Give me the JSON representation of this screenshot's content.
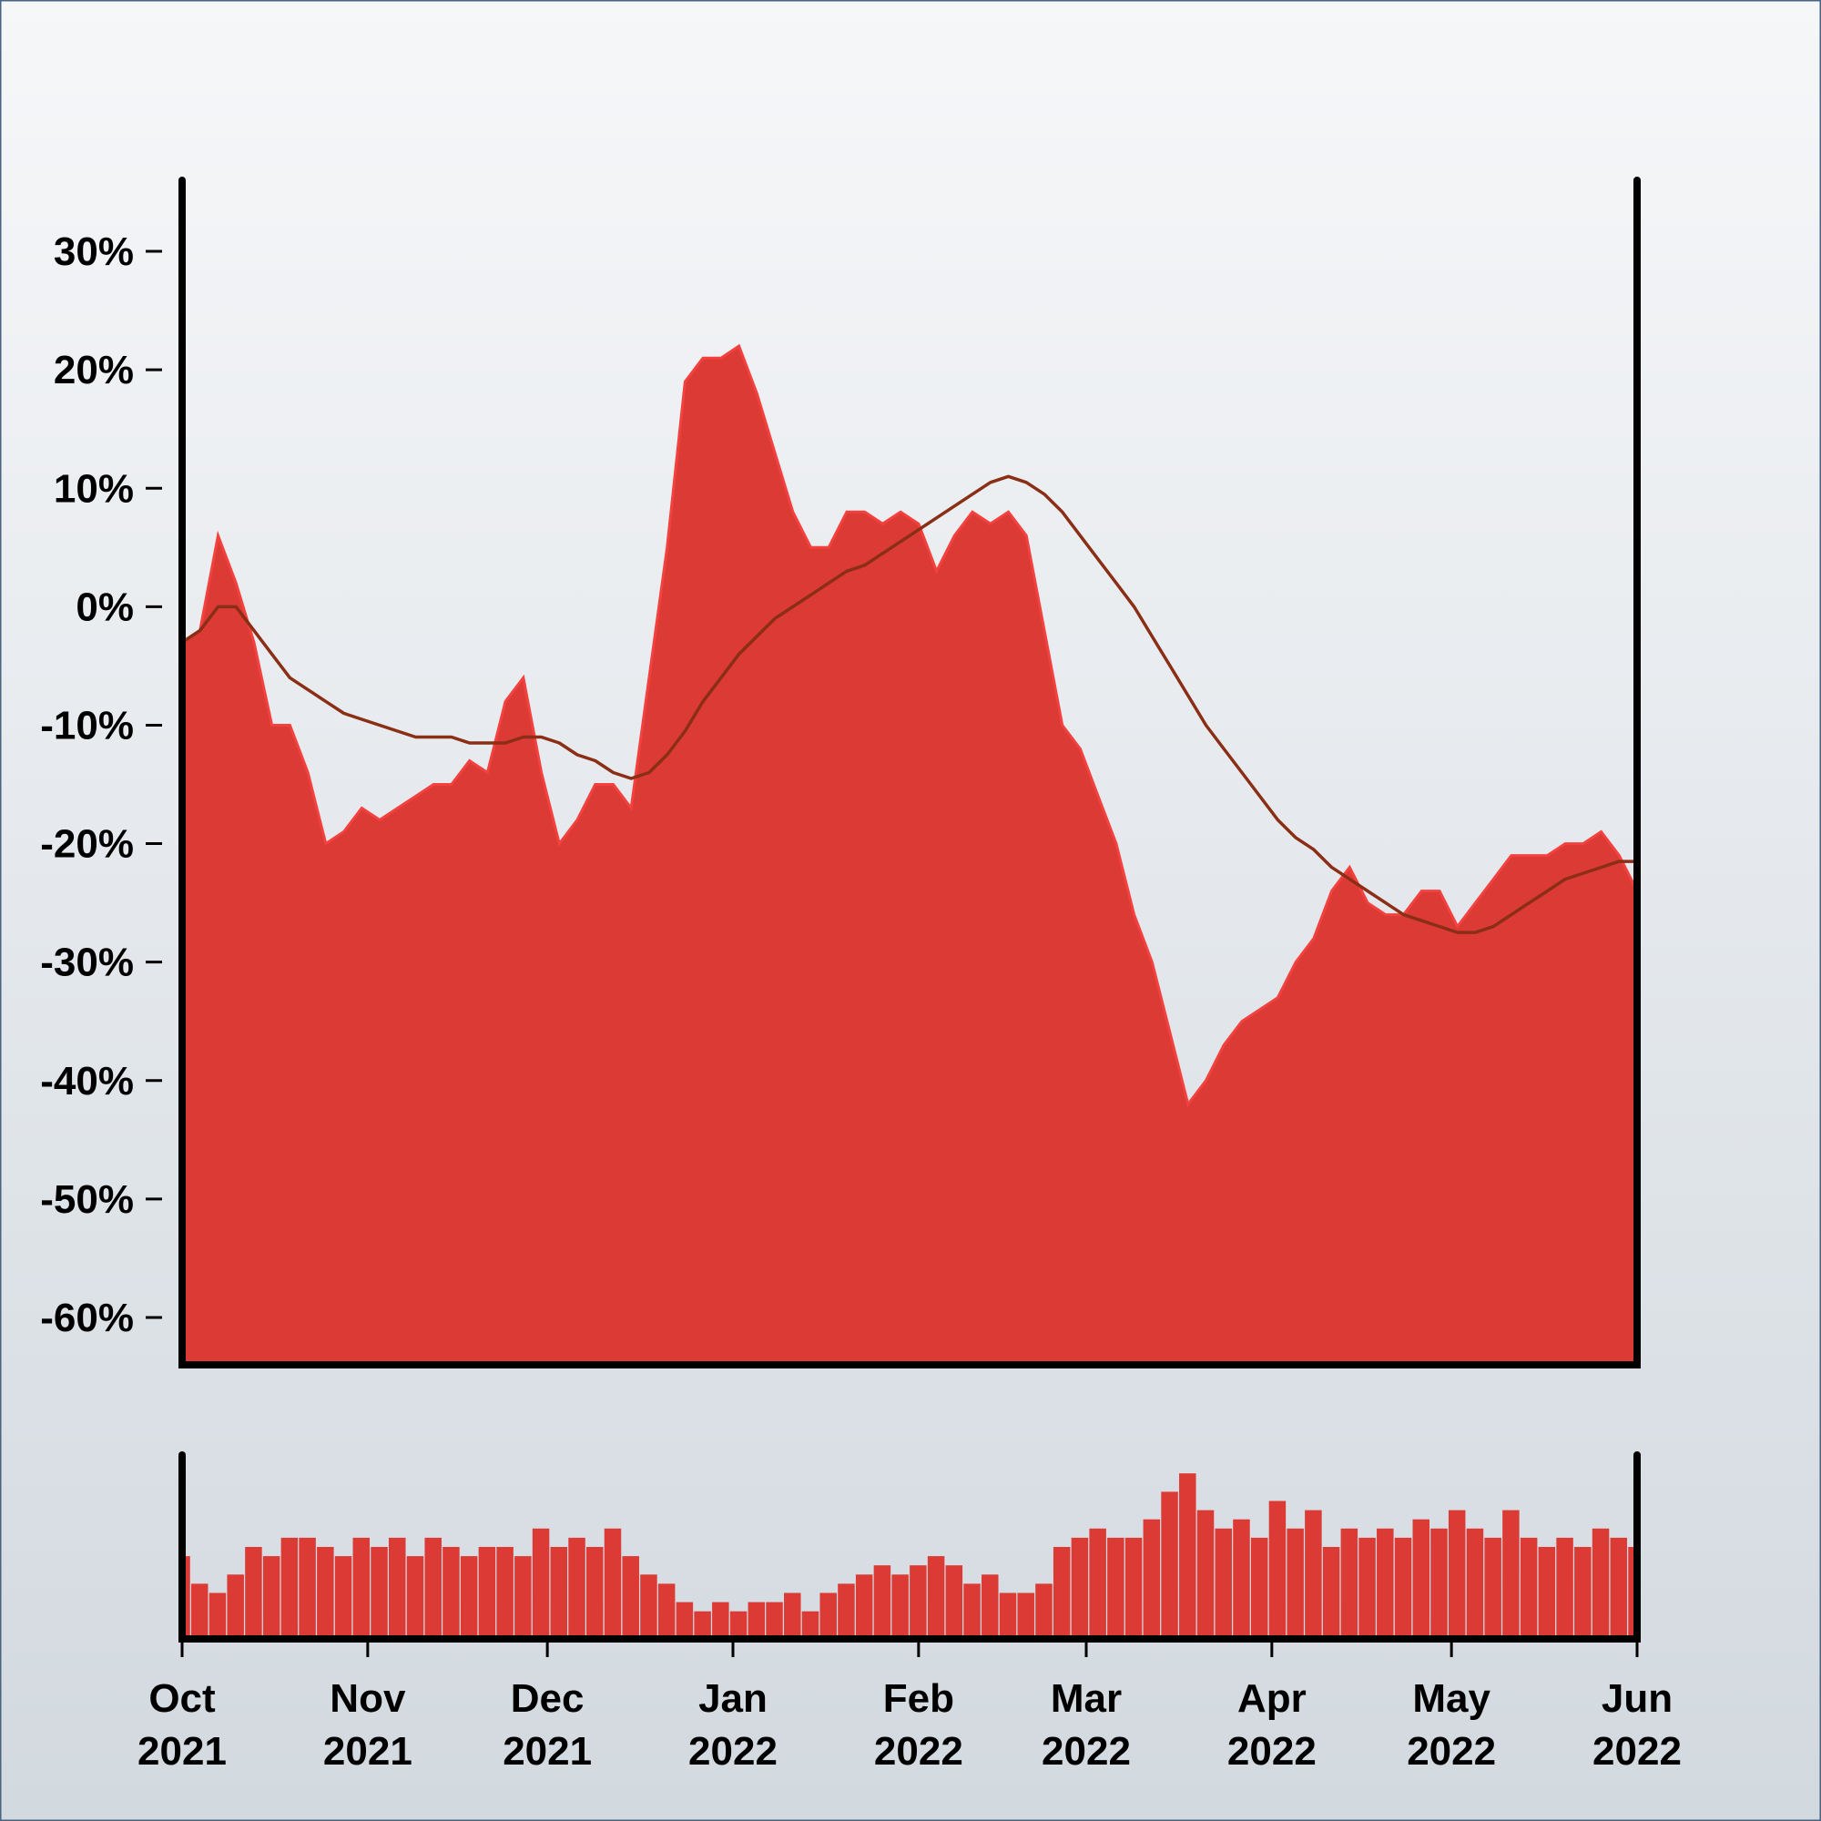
{
  "chart_data": [
    {
      "type": "area",
      "xlim": [
        0,
        243
      ],
      "ylim": [
        -64,
        36
      ],
      "yticks": [
        {
          "value": 30,
          "label": "30%"
        },
        {
          "value": 20,
          "label": "20%"
        },
        {
          "value": 10,
          "label": "10%"
        },
        {
          "value": 0,
          "label": "0%"
        },
        {
          "value": -10,
          "label": "-10%"
        },
        {
          "value": -20,
          "label": "-20%"
        },
        {
          "value": -30,
          "label": "-30%"
        },
        {
          "value": -40,
          "label": "-40%"
        },
        {
          "value": -50,
          "label": "-50%"
        },
        {
          "value": -60,
          "label": "-60%"
        }
      ],
      "x": [
        0,
        3,
        6,
        9,
        12,
        15,
        18,
        21,
        24,
        27,
        30,
        33,
        36,
        39,
        42,
        45,
        48,
        51,
        54,
        57,
        60,
        63,
        66,
        69,
        72,
        75,
        78,
        81,
        84,
        87,
        90,
        93,
        96,
        99,
        102,
        105,
        108,
        111,
        114,
        117,
        120,
        123,
        126,
        129,
        132,
        135,
        138,
        141,
        144,
        147,
        150,
        153,
        156,
        159,
        162,
        165,
        168,
        171,
        174,
        177,
        180,
        183,
        186,
        189,
        192,
        195,
        198,
        201,
        204,
        207,
        210,
        213,
        216,
        219,
        222,
        225,
        228,
        231,
        234,
        237,
        240,
        243
      ],
      "series": [
        {
          "type": "area",
          "color": "#dc3a35",
          "values": [
            -3,
            -2,
            6,
            2,
            -3,
            -10,
            -10,
            -14,
            -20,
            -19,
            -17,
            -18,
            -17,
            -16,
            -15,
            -15,
            -13,
            -14,
            -8,
            -6,
            -14,
            -20,
            -18,
            -15,
            -15,
            -17,
            -6,
            5,
            19,
            21,
            21,
            22,
            18,
            13,
            8,
            5,
            5,
            8,
            8,
            7,
            8,
            7,
            3,
            6,
            8,
            7,
            8,
            6,
            -2,
            -10,
            -12,
            -16,
            -20,
            -26,
            -30,
            -36,
            -42,
            -40,
            -37,
            -35,
            -34,
            -33,
            -30,
            -28,
            -24,
            -22,
            -25,
            -26,
            -26,
            -24,
            -24,
            -27,
            -25,
            -23,
            -21,
            -21,
            -21,
            -20,
            -20,
            -19,
            -21,
            -24
          ]
        },
        {
          "type": "line",
          "color": "#8b2e16",
          "values": [
            -3,
            -2,
            0,
            0,
            -2,
            -4,
            -6,
            -7,
            -8,
            -9,
            -9.5,
            -10,
            -10.5,
            -11,
            -11,
            -11,
            -11.5,
            -11.5,
            -11.5,
            -11,
            -11,
            -11.5,
            -12.5,
            -13,
            -14,
            -14.5,
            -14,
            -12.5,
            -10.5,
            -8,
            -6,
            -4,
            -2.5,
            -1,
            0,
            1,
            2,
            3,
            3.5,
            4.5,
            5.5,
            6.5,
            7.5,
            8.5,
            9.5,
            10.5,
            11,
            10.5,
            9.5,
            8,
            6,
            4,
            2,
            0,
            -2.5,
            -5,
            -7.5,
            -10,
            -12,
            -14,
            -16,
            -18,
            -19.5,
            -20.5,
            -22,
            -23,
            -24,
            -25,
            -26,
            -26.5,
            -27,
            -27.5,
            -27.5,
            -27,
            -26,
            -25,
            -24,
            -23,
            -22.5,
            -22,
            -21.5,
            -21.5
          ]
        }
      ]
    },
    {
      "type": "bar",
      "color": "#dc3a35",
      "xlim": [
        0,
        243
      ],
      "ylim": [
        0,
        100
      ],
      "xticks": [
        {
          "value": 0,
          "label": "Oct 2021"
        },
        {
          "value": 31,
          "label": "Nov 2021"
        },
        {
          "value": 61,
          "label": "Dec 2021"
        },
        {
          "value": 92,
          "label": "Jan 2022"
        },
        {
          "value": 123,
          "label": "Feb 2022"
        },
        {
          "value": 151,
          "label": "Mar 2022"
        },
        {
          "value": 182,
          "label": "Apr 2022"
        },
        {
          "value": 212,
          "label": "May 2022"
        },
        {
          "value": 243,
          "label": "Jun 2022"
        }
      ],
      "x": [
        0,
        3,
        6,
        9,
        12,
        15,
        18,
        21,
        24,
        27,
        30,
        33,
        36,
        39,
        42,
        45,
        48,
        51,
        54,
        57,
        60,
        63,
        66,
        69,
        72,
        75,
        78,
        81,
        84,
        87,
        90,
        93,
        96,
        99,
        102,
        105,
        108,
        111,
        114,
        117,
        120,
        123,
        126,
        129,
        132,
        135,
        138,
        141,
        144,
        147,
        150,
        153,
        156,
        159,
        162,
        165,
        168,
        171,
        174,
        177,
        180,
        183,
        186,
        189,
        192,
        195,
        198,
        201,
        204,
        207,
        210,
        213,
        216,
        219,
        222,
        225,
        228,
        231,
        234,
        237,
        240,
        243
      ],
      "values": [
        45,
        30,
        25,
        35,
        50,
        45,
        55,
        55,
        50,
        45,
        55,
        50,
        55,
        45,
        55,
        50,
        45,
        50,
        50,
        45,
        60,
        50,
        55,
        50,
        60,
        45,
        35,
        30,
        20,
        15,
        20,
        15,
        20,
        20,
        25,
        15,
        25,
        30,
        35,
        40,
        35,
        40,
        45,
        40,
        30,
        35,
        25,
        25,
        30,
        50,
        55,
        60,
        55,
        55,
        65,
        80,
        90,
        70,
        60,
        65,
        55,
        75,
        60,
        70,
        50,
        60,
        55,
        60,
        55,
        65,
        60,
        70,
        60,
        55,
        70,
        55,
        50,
        55,
        50,
        60,
        55,
        50
      ]
    }
  ]
}
